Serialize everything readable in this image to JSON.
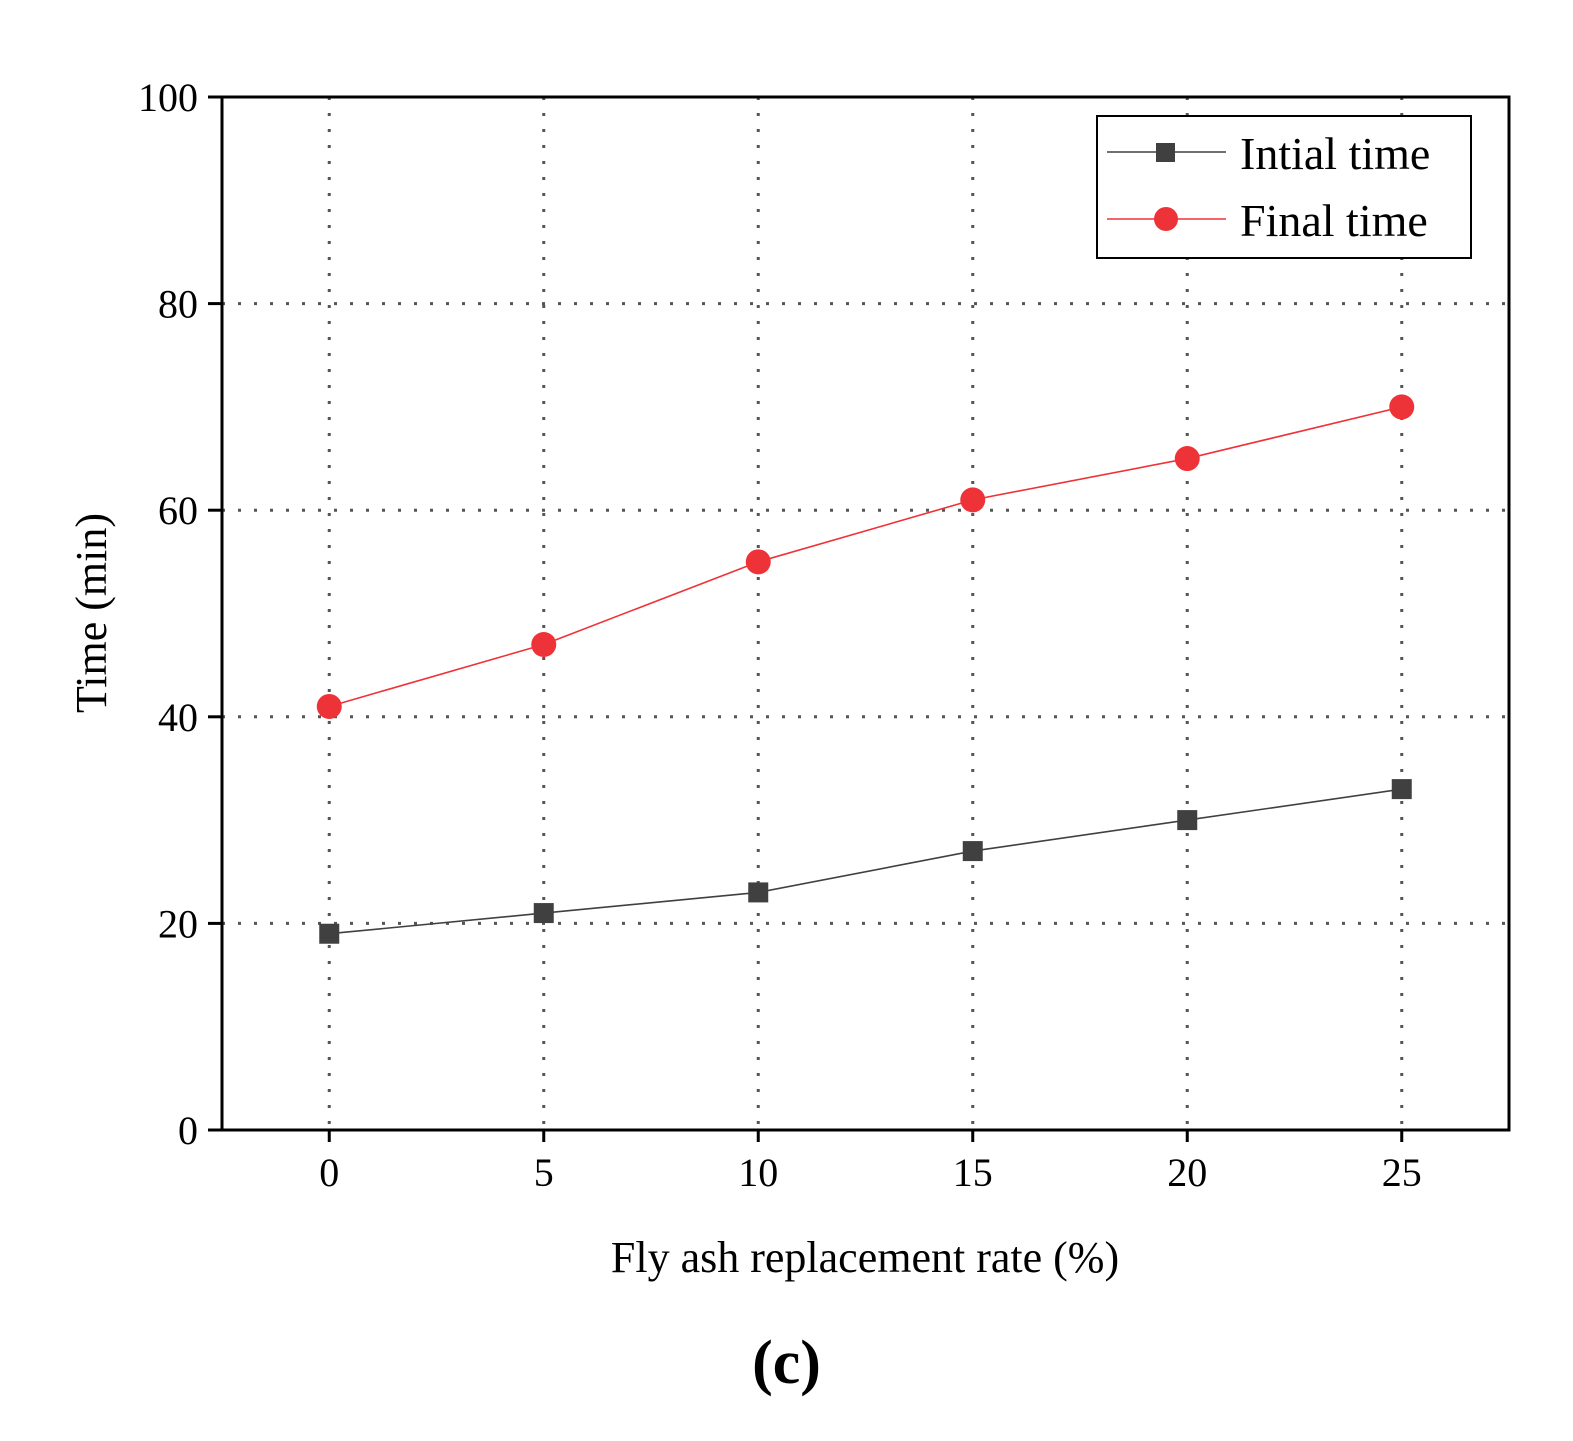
{
  "chart_data": {
    "type": "line",
    "title": "",
    "xlabel": "Fly ash replacement rate (%)",
    "ylabel": "Time (min)",
    "x": [
      0,
      5,
      10,
      15,
      20,
      25
    ],
    "x_ticks": [
      "0",
      "5",
      "10",
      "15",
      "20",
      "25"
    ],
    "y_ticks": [
      "0",
      "20",
      "40",
      "60",
      "80",
      "100"
    ],
    "xlim": [
      -2.5,
      27.5
    ],
    "ylim": [
      0,
      100
    ],
    "grid": true,
    "legend_position": "top-right",
    "series": [
      {
        "name": "Intial time",
        "marker": "square",
        "color": "#404040",
        "values": [
          19,
          21,
          23,
          27,
          30,
          33
        ]
      },
      {
        "name": "Final time",
        "marker": "circle",
        "color": "#ee3338",
        "values": [
          41,
          47,
          55,
          61,
          65,
          70
        ]
      }
    ]
  },
  "figure_label": "(c)"
}
